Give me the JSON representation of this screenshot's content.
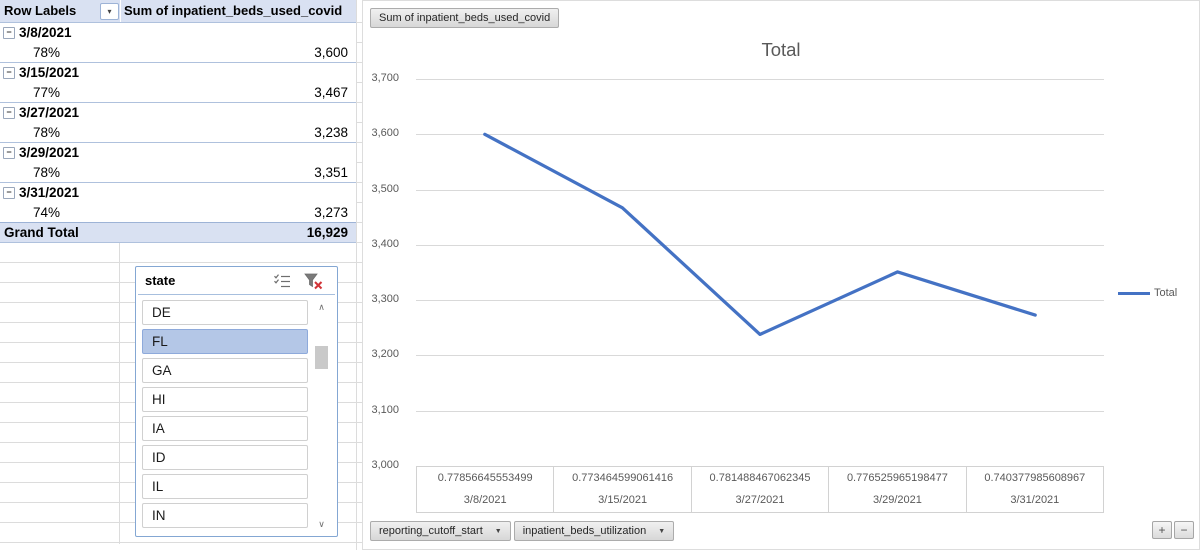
{
  "pivot_table": {
    "header": {
      "row_labels_label": "Row Labels",
      "values_label": "Sum of inpatient_beds_used_covid"
    },
    "rows": [
      {
        "type": "group",
        "label": "3/8/2021"
      },
      {
        "type": "detail",
        "label": "78%",
        "value": "3,600"
      },
      {
        "type": "group",
        "label": "3/15/2021"
      },
      {
        "type": "detail",
        "label": "77%",
        "value": "3,467"
      },
      {
        "type": "group",
        "label": "3/27/2021"
      },
      {
        "type": "detail",
        "label": "78%",
        "value": "3,238"
      },
      {
        "type": "group",
        "label": "3/29/2021"
      },
      {
        "type": "detail",
        "label": "78%",
        "value": "3,351"
      },
      {
        "type": "group",
        "label": "3/31/2021"
      },
      {
        "type": "detail",
        "label": "74%",
        "value": "3,273"
      }
    ],
    "grand_total": {
      "label": "Grand Total",
      "value": "16,929"
    }
  },
  "slicer": {
    "title": "state",
    "items": [
      {
        "label": "DE",
        "selected": false
      },
      {
        "label": "FL",
        "selected": true
      },
      {
        "label": "GA",
        "selected": false
      },
      {
        "label": "HI",
        "selected": false
      },
      {
        "label": "IA",
        "selected": false
      },
      {
        "label": "ID",
        "selected": false
      },
      {
        "label": "IL",
        "selected": false
      },
      {
        "label": "IN",
        "selected": false
      }
    ]
  },
  "chart": {
    "value_field_button": "Sum of inpatient_beds_used_covid",
    "axis_field_buttons": [
      "reporting_cutoff_start",
      "inpatient_beds_utilization"
    ]
  },
  "chart_data": {
    "type": "line",
    "title": "Total",
    "categories": [
      "3/8/2021",
      "3/15/2021",
      "3/27/2021",
      "3/29/2021",
      "3/31/2021"
    ],
    "category_top_labels": [
      "0.77856645553499",
      "0.773464599061416",
      "0.781488467062345",
      "0.776525965198477",
      "0.740377985608967"
    ],
    "series": [
      {
        "name": "Total",
        "values": [
          3600,
          3467,
          3238,
          3351,
          3273
        ],
        "color": "#4472C4"
      }
    ],
    "ylim": [
      3000,
      3700
    ],
    "yticks": [
      3700,
      3600,
      3500,
      3400,
      3300,
      3200,
      3100,
      3000
    ],
    "ytick_labels": [
      "3,700",
      "3,600",
      "3,500",
      "3,400",
      "3,300",
      "3,200",
      "3,100",
      "3,000"
    ],
    "grid": true,
    "legend_position": "right"
  },
  "icons": {
    "filter_dropdown": "▾",
    "collapse_glyph": "−",
    "dropdown_arrow": "▼",
    "scroll_up": "∧",
    "scroll_down": "∨",
    "expand_field": "+",
    "collapse_field": "−"
  },
  "colors": {
    "accent_line": "#4472C4",
    "pivot_header_fill": "#D9E1F2",
    "slicer_selected_fill": "#B4C7E7",
    "gridline": "#D9D9D9",
    "clear_filter_x": "#D13438",
    "chart_text": "#595959"
  }
}
